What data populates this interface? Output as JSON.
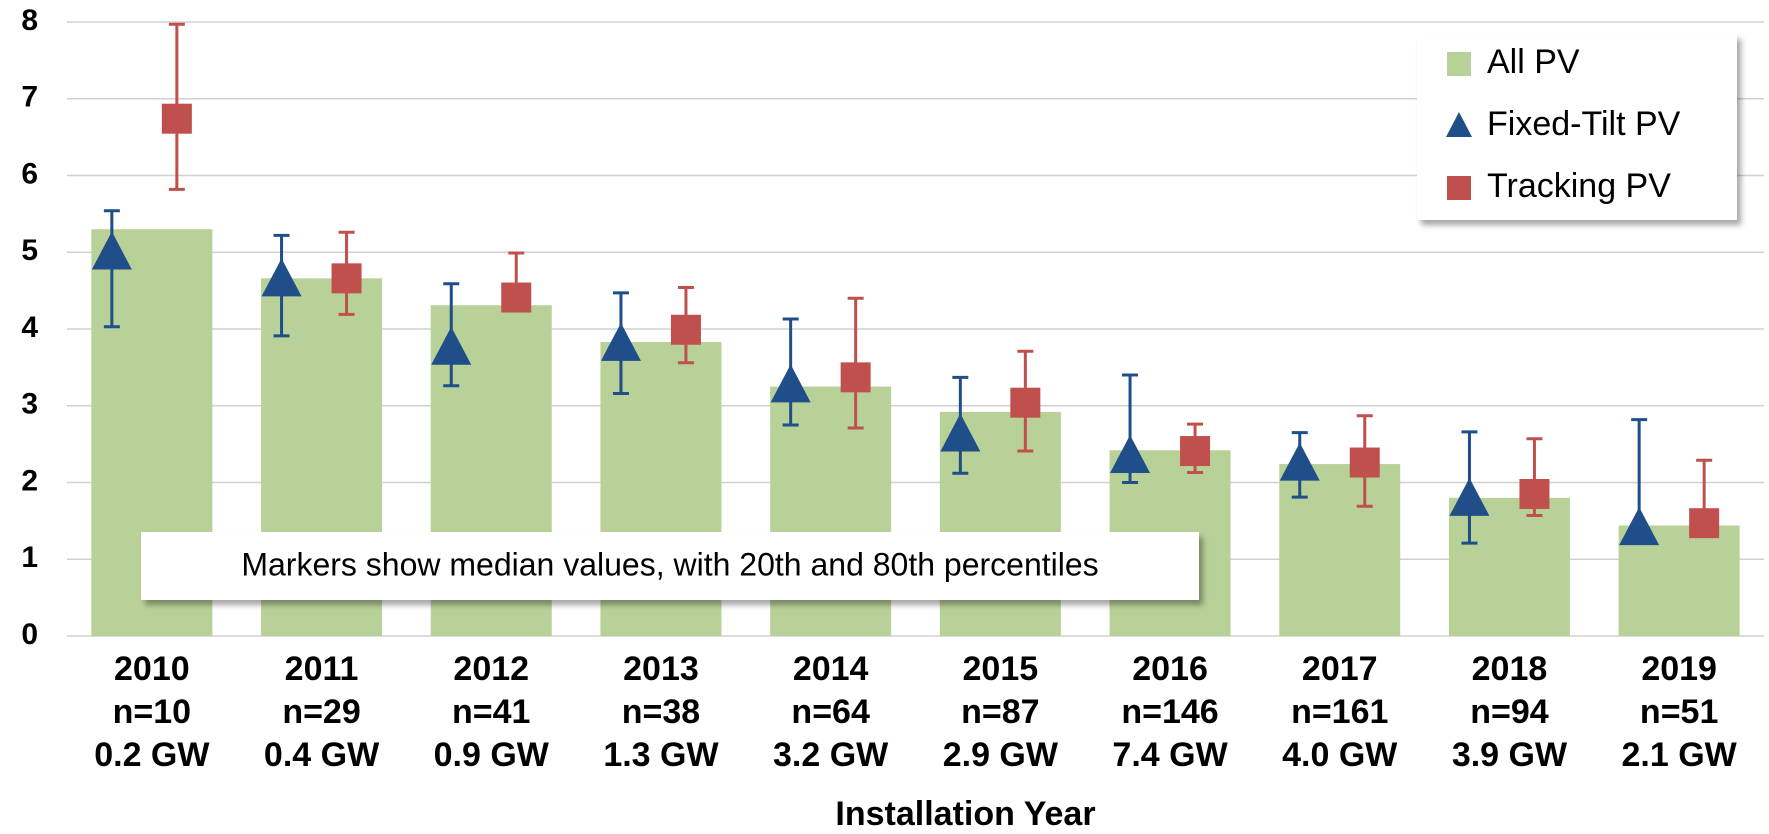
{
  "chart_data": {
    "type": "bar",
    "x_label": "Installation Year",
    "annotation": "Markers show median values, with 20th and 80th percentiles",
    "categories": [
      "2010",
      "2011",
      "2012",
      "2013",
      "2014",
      "2015",
      "2016",
      "2017",
      "2018",
      "2019"
    ],
    "counts": [
      "n=10",
      "n=29",
      "n=41",
      "n=38",
      "n=64",
      "n=87",
      "n=146",
      "n=161",
      "n=94",
      "n=51"
    ],
    "capacity": [
      "0.2 GW",
      "0.4 GW",
      "0.9 GW",
      "1.3 GW",
      "3.2 GW",
      "2.9 GW",
      "7.4 GW",
      "4.0 GW",
      "3.9 GW",
      "2.1 GW"
    ],
    "ylim": [
      0,
      8
    ],
    "yticks": [
      0,
      1,
      2,
      3,
      4,
      5,
      6,
      7,
      8
    ],
    "grid": true,
    "legend": "upper right",
    "series": [
      {
        "name": "All PV",
        "color": "#b8d198",
        "marker": "bar",
        "values": [
          5.3,
          4.66,
          4.31,
          3.83,
          3.25,
          2.92,
          2.42,
          2.24,
          1.8,
          1.44
        ]
      },
      {
        "name": "Fixed-Tilt PV",
        "color": "#1f4e89",
        "marker": "triangle",
        "values": [
          4.97,
          4.62,
          3.73,
          3.78,
          3.24,
          2.6,
          2.32,
          2.22,
          1.76,
          1.38
        ],
        "low": [
          4.03,
          3.91,
          3.26,
          3.16,
          2.75,
          2.12,
          2.0,
          1.81,
          1.21,
          1.35
        ],
        "high": [
          5.54,
          5.22,
          4.59,
          4.47,
          4.13,
          3.37,
          3.4,
          2.65,
          2.66,
          2.82
        ]
      },
      {
        "name": "Tracking PV",
        "color": "#c0504d",
        "marker": "square",
        "values": [
          6.74,
          4.66,
          4.41,
          3.99,
          3.37,
          3.04,
          2.41,
          2.26,
          1.85,
          1.47
        ],
        "low": [
          5.82,
          4.19,
          4.35,
          3.56,
          2.71,
          2.41,
          2.13,
          1.69,
          1.57,
          1.45
        ],
        "high": [
          7.97,
          5.26,
          4.99,
          4.54,
          4.4,
          3.71,
          2.76,
          2.87,
          2.57,
          2.29
        ]
      }
    ]
  }
}
